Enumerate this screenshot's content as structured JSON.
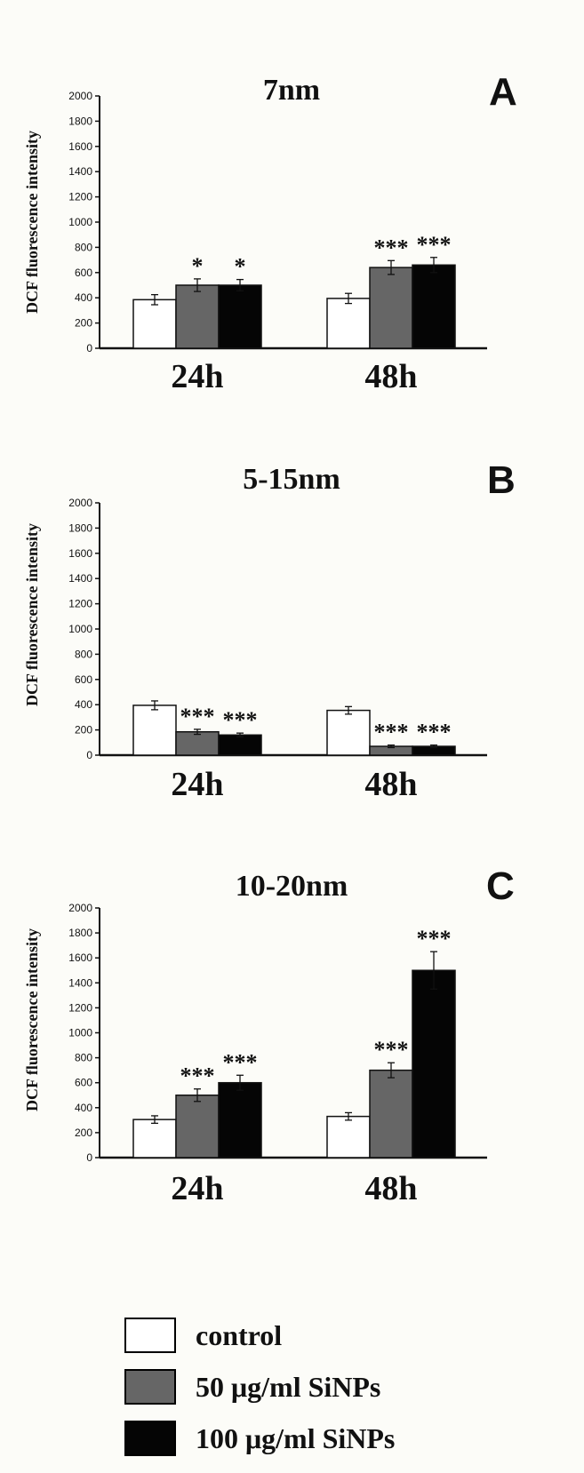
{
  "chart_data": [
    {
      "type": "bar",
      "title": "7nm",
      "panel_letter": "A",
      "ylabel": "DCF fluorescence intensity",
      "ylim": [
        0,
        2000
      ],
      "yticks": [
        0,
        200,
        400,
        600,
        800,
        1000,
        1200,
        1400,
        1600,
        1800,
        2000
      ],
      "categories": [
        "24h",
        "48h"
      ],
      "series": [
        {
          "name": "control",
          "values": [
            385,
            395
          ],
          "errors": [
            40,
            40
          ],
          "sig": [
            "",
            ""
          ]
        },
        {
          "name": "50 μg/ml  SiNPs",
          "values": [
            500,
            640
          ],
          "errors": [
            50,
            55
          ],
          "sig": [
            "*",
            "***"
          ]
        },
        {
          "name": "100 μg/ml  SiNPs",
          "values": [
            500,
            660
          ],
          "errors": [
            45,
            60
          ],
          "sig": [
            "*",
            "***"
          ]
        }
      ]
    },
    {
      "type": "bar",
      "title": "5-15nm",
      "panel_letter": "B",
      "ylabel": "DCF fluorescence intensity",
      "ylim": [
        0,
        2000
      ],
      "yticks": [
        0,
        200,
        400,
        600,
        800,
        1000,
        1200,
        1400,
        1600,
        1800,
        2000
      ],
      "categories": [
        "24h",
        "48h"
      ],
      "series": [
        {
          "name": "control",
          "values": [
            395,
            355
          ],
          "errors": [
            35,
            30
          ],
          "sig": [
            "",
            ""
          ]
        },
        {
          "name": "50 μg/ml  SiNPs",
          "values": [
            185,
            70
          ],
          "errors": [
            20,
            10
          ],
          "sig": [
            "***",
            "***"
          ]
        },
        {
          "name": "100 μg/ml  SiNPs",
          "values": [
            160,
            70
          ],
          "errors": [
            15,
            10
          ],
          "sig": [
            "***",
            "***"
          ]
        }
      ]
    },
    {
      "type": "bar",
      "title": "10-20nm",
      "panel_letter": "C",
      "ylabel": "DCF fluorescence intensity",
      "ylim": [
        0,
        2000
      ],
      "yticks": [
        0,
        200,
        400,
        600,
        800,
        1000,
        1200,
        1400,
        1600,
        1800,
        2000
      ],
      "categories": [
        "24h",
        "48h"
      ],
      "series": [
        {
          "name": "control",
          "values": [
            305,
            330
          ],
          "errors": [
            30,
            30
          ],
          "sig": [
            "",
            ""
          ]
        },
        {
          "name": "50 μg/ml  SiNPs",
          "values": [
            500,
            700
          ],
          "errors": [
            50,
            60
          ],
          "sig": [
            "***",
            "***"
          ]
        },
        {
          "name": "100 μg/ml  SiNPs",
          "values": [
            600,
            1500
          ],
          "errors": [
            60,
            150
          ],
          "sig": [
            "***",
            "***"
          ]
        }
      ]
    }
  ],
  "colors": {
    "control": "#ffffff",
    "50 μg/ml  SiNPs": "#666666",
    "100 μg/ml  SiNPs": "#050505"
  },
  "legend": {
    "items": [
      {
        "label": "control",
        "color": "#ffffff"
      },
      {
        "label": "50 μg/ml  SiNPs",
        "color": "#666666"
      },
      {
        "label": "100 μg/ml  SiNPs",
        "color": "#050505"
      }
    ]
  }
}
